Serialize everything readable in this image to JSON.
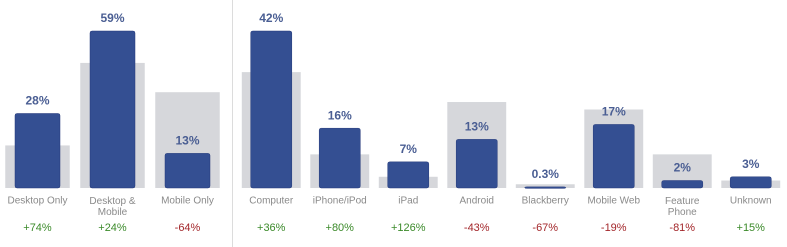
{
  "chart_data": [
    {
      "type": "bar",
      "categories": [
        "Desktop Only",
        "Desktop &\nMobile",
        "Mobile Only"
      ],
      "values": [
        28,
        59,
        13
      ],
      "value_labels": [
        "28%",
        "59%",
        "13%"
      ],
      "comparison_values": [
        16,
        47,
        36
      ],
      "changes": [
        74,
        24,
        -64
      ],
      "change_labels": [
        "+74%",
        "+24%",
        "-64%"
      ],
      "color": "#344f92",
      "comparison_color": "#d6d7db",
      "ylim": [
        0,
        59
      ]
    },
    {
      "type": "bar",
      "categories": [
        "Computer",
        "iPhone/iPod",
        "iPad",
        "Android",
        "Blackberry",
        "Mobile Web",
        "Feature\nPhone",
        "Unknown"
      ],
      "values": [
        42,
        16,
        7,
        13,
        0.3,
        17,
        2,
        3
      ],
      "value_labels": [
        "42%",
        "16%",
        "7%",
        "13%",
        "0.3%",
        "17%",
        "2%",
        "3%"
      ],
      "comparison_values": [
        31,
        9,
        3,
        23,
        1,
        21,
        9,
        2
      ],
      "changes": [
        36,
        80,
        126,
        -43,
        -67,
        -19,
        -81,
        15
      ],
      "change_labels": [
        "+36%",
        "+80%",
        "+126%",
        "-43%",
        "-67%",
        "-19%",
        "-81%",
        "+15%"
      ],
      "color": "#344f92",
      "comparison_color": "#d6d7db",
      "ylim": [
        0,
        42
      ]
    }
  ]
}
